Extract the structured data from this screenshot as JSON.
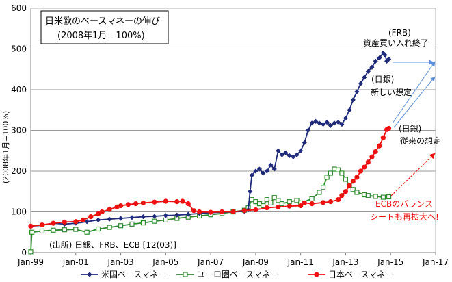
{
  "chart_data": {
    "type": "line",
    "title": "日米欧のベースマネーの伸び",
    "subtitle": "(2008年1月＝100%)",
    "ylabel": "(2008年1月=100%)",
    "ylim": [
      0,
      600
    ],
    "yticks": [
      0,
      100,
      200,
      300,
      400,
      500,
      600
    ],
    "xlim": [
      1999.0,
      2017.0
    ],
    "xticks": [
      {
        "v": 1999,
        "label": "Jan-99"
      },
      {
        "v": 2001,
        "label": "Jan-01"
      },
      {
        "v": 2003,
        "label": "Jan-03"
      },
      {
        "v": 2005,
        "label": "Jan-05"
      },
      {
        "v": 2007,
        "label": "Jan-07"
      },
      {
        "v": 2009,
        "label": "Jan-09"
      },
      {
        "v": 2011,
        "label": "Jan-11"
      },
      {
        "v": 2013,
        "label": "Jan-13"
      },
      {
        "v": 2015,
        "label": "Jan-15"
      },
      {
        "v": 2017,
        "label": "Jan-17"
      }
    ],
    "grid": "horizontal",
    "legend_position": "bottom",
    "source_note": "(出所) 日銀、FRB、ECB [12(03)]",
    "series": [
      {
        "name": "米国ベースマネー",
        "color": "#1f2a7a",
        "marker": "diamond",
        "points": [
          [
            1999.0,
            65
          ],
          [
            1999.5,
            67
          ],
          [
            2000.0,
            72
          ],
          [
            2000.5,
            70
          ],
          [
            2001.0,
            72
          ],
          [
            2001.5,
            76
          ],
          [
            2002.0,
            80
          ],
          [
            2002.5,
            82
          ],
          [
            2003.0,
            84
          ],
          [
            2003.5,
            86
          ],
          [
            2004.0,
            88
          ],
          [
            2004.5,
            89
          ],
          [
            2005.0,
            91
          ],
          [
            2005.5,
            92
          ],
          [
            2006.0,
            94
          ],
          [
            2006.5,
            96
          ],
          [
            2007.0,
            98
          ],
          [
            2007.5,
            99
          ],
          [
            2008.0,
            100
          ],
          [
            2008.5,
            101
          ],
          [
            2008.67,
            105
          ],
          [
            2008.75,
            150
          ],
          [
            2008.83,
            190
          ],
          [
            2009.0,
            200
          ],
          [
            2009.17,
            205
          ],
          [
            2009.33,
            195
          ],
          [
            2009.5,
            200
          ],
          [
            2009.67,
            215
          ],
          [
            2009.83,
            205
          ],
          [
            2010.0,
            250
          ],
          [
            2010.17,
            240
          ],
          [
            2010.33,
            245
          ],
          [
            2010.5,
            238
          ],
          [
            2010.67,
            235
          ],
          [
            2010.83,
            240
          ],
          [
            2011.0,
            250
          ],
          [
            2011.17,
            270
          ],
          [
            2011.33,
            300
          ],
          [
            2011.5,
            318
          ],
          [
            2011.67,
            322
          ],
          [
            2011.83,
            318
          ],
          [
            2012.0,
            315
          ],
          [
            2012.17,
            320
          ],
          [
            2012.33,
            312
          ],
          [
            2012.5,
            318
          ],
          [
            2012.67,
            320
          ],
          [
            2012.83,
            315
          ],
          [
            2013.0,
            330
          ],
          [
            2013.17,
            350
          ],
          [
            2013.33,
            375
          ],
          [
            2013.5,
            395
          ],
          [
            2013.67,
            415
          ],
          [
            2013.83,
            430
          ],
          [
            2014.0,
            445
          ],
          [
            2014.17,
            455
          ],
          [
            2014.33,
            470
          ],
          [
            2014.5,
            478
          ],
          [
            2014.67,
            490
          ],
          [
            2014.75,
            485
          ],
          [
            2014.83,
            470
          ],
          [
            2014.92,
            475
          ]
        ]
      },
      {
        "name": "ユーロ圏ベースマネー",
        "color": "#2e8b2e",
        "marker": "square",
        "points": [
          [
            1999.0,
            2
          ],
          [
            1999.05,
            50
          ],
          [
            1999.5,
            53
          ],
          [
            2000.0,
            55
          ],
          [
            2000.5,
            56
          ],
          [
            2001.0,
            57
          ],
          [
            2001.5,
            50
          ],
          [
            2002.0,
            58
          ],
          [
            2002.5,
            62
          ],
          [
            2003.0,
            66
          ],
          [
            2003.5,
            70
          ],
          [
            2004.0,
            73
          ],
          [
            2004.5,
            77
          ],
          [
            2005.0,
            80
          ],
          [
            2005.5,
            84
          ],
          [
            2006.0,
            87
          ],
          [
            2006.5,
            90
          ],
          [
            2007.0,
            93
          ],
          [
            2007.5,
            96
          ],
          [
            2008.0,
            100
          ],
          [
            2008.5,
            104
          ],
          [
            2008.67,
            110
          ],
          [
            2008.83,
            130
          ],
          [
            2009.0,
            125
          ],
          [
            2009.17,
            120
          ],
          [
            2009.33,
            115
          ],
          [
            2009.5,
            130
          ],
          [
            2009.67,
            122
          ],
          [
            2009.83,
            135
          ],
          [
            2010.0,
            128
          ],
          [
            2010.17,
            120
          ],
          [
            2010.5,
            125
          ],
          [
            2010.83,
            128
          ],
          [
            2011.0,
            122
          ],
          [
            2011.5,
            132
          ],
          [
            2011.83,
            148
          ],
          [
            2012.0,
            160
          ],
          [
            2012.17,
            185
          ],
          [
            2012.33,
            195
          ],
          [
            2012.5,
            205
          ],
          [
            2012.67,
            203
          ],
          [
            2012.83,
            195
          ],
          [
            2013.0,
            180
          ],
          [
            2013.17,
            165
          ],
          [
            2013.33,
            155
          ],
          [
            2013.5,
            148
          ],
          [
            2013.83,
            142
          ],
          [
            2014.0,
            140
          ],
          [
            2014.33,
            138
          ],
          [
            2014.67,
            136
          ],
          [
            2014.92,
            137
          ]
        ]
      },
      {
        "name": "日本ベースマネー",
        "color": "#ee1111",
        "marker": "circle",
        "points": [
          [
            1999.0,
            65
          ],
          [
            1999.5,
            68
          ],
          [
            2000.0,
            72
          ],
          [
            2000.5,
            75
          ],
          [
            2001.0,
            76
          ],
          [
            2001.33,
            80
          ],
          [
            2001.67,
            88
          ],
          [
            2002.0,
            95
          ],
          [
            2002.17,
            100
          ],
          [
            2002.5,
            106
          ],
          [
            2002.83,
            112
          ],
          [
            2003.0,
            115
          ],
          [
            2003.33,
            118
          ],
          [
            2003.67,
            120
          ],
          [
            2004.0,
            122
          ],
          [
            2004.5,
            124
          ],
          [
            2005.0,
            126
          ],
          [
            2005.5,
            125
          ],
          [
            2005.75,
            126
          ],
          [
            2006.0,
            120
          ],
          [
            2006.25,
            103
          ],
          [
            2006.5,
            100
          ],
          [
            2007.0,
            99
          ],
          [
            2007.5,
            100
          ],
          [
            2008.0,
            100
          ],
          [
            2008.5,
            103
          ],
          [
            2009.0,
            105
          ],
          [
            2009.5,
            110
          ],
          [
            2010.0,
            112
          ],
          [
            2010.5,
            114
          ],
          [
            2011.0,
            115
          ],
          [
            2011.17,
            122
          ],
          [
            2011.5,
            120
          ],
          [
            2012.0,
            123
          ],
          [
            2012.33,
            125
          ],
          [
            2012.67,
            130
          ],
          [
            2012.83,
            140
          ],
          [
            2013.0,
            150
          ],
          [
            2013.17,
            165
          ],
          [
            2013.33,
            175
          ],
          [
            2013.5,
            185
          ],
          [
            2013.67,
            200
          ],
          [
            2013.83,
            210
          ],
          [
            2014.0,
            222
          ],
          [
            2014.17,
            235
          ],
          [
            2014.33,
            248
          ],
          [
            2014.5,
            262
          ],
          [
            2014.67,
            282
          ],
          [
            2014.83,
            302
          ],
          [
            2014.92,
            305
          ]
        ]
      }
    ],
    "annotations": [
      {
        "id": "frb",
        "lines": [
          "(FRB)",
          "資産買い入れ終了"
        ]
      },
      {
        "id": "boj-new",
        "lines": [
          "(日銀)",
          "新しい想定"
        ]
      },
      {
        "id": "boj-old",
        "lines": [
          "(日銀)",
          "従来の想定"
        ]
      },
      {
        "id": "ecb",
        "lines": [
          "ECBのバランス",
          "シートも再拡大へ!"
        ]
      }
    ]
  }
}
